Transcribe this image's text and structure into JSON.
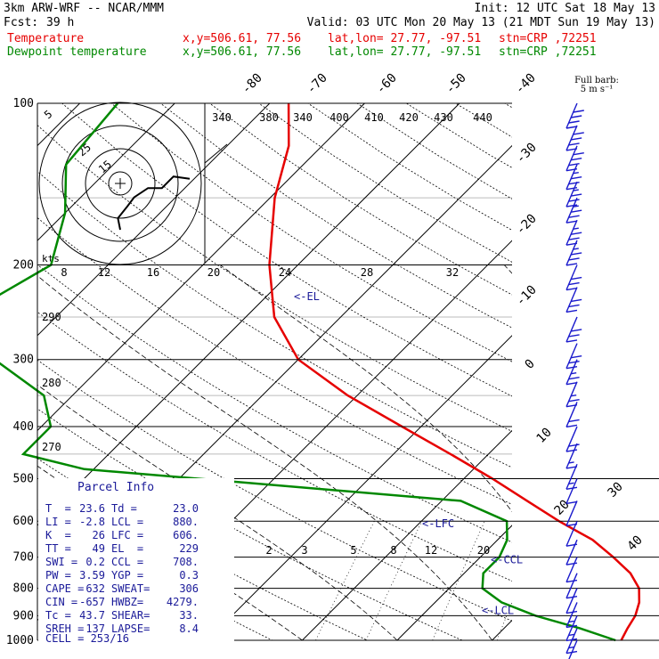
{
  "header": {
    "model": "3km ARW-WRF -- NCAR/MMM",
    "init": "Init: 12 UTC Sat 18 May 13",
    "fcst_label": "Fcst:",
    "fcst_value": "39 h",
    "valid": "Valid: 03 UTC Mon 20 May 13 (21 MDT Sun 19 May 13)",
    "temp_line": {
      "label": "Temperature",
      "xy": "x,y=506.61, 77.56",
      "latlon": "lat,lon= 27.77, -97.51",
      "stn": "stn=CRP ,72251"
    },
    "dew_line": {
      "label": "Dewpoint temperature",
      "xy": "x,y=506.61, 77.56",
      "latlon": "lat,lon= 27.77, -97.51",
      "stn": "stn=CRP ,72251"
    }
  },
  "colors": {
    "temperature": "#e60000",
    "dewpoint": "#008800",
    "wind": "#1a1acc",
    "grid": "#000000",
    "text": "#000000"
  },
  "barb_legend": {
    "line1": "Full barb:",
    "line2": "5 m s⁻¹"
  },
  "chart_data": {
    "type": "line",
    "subtype": "skew-T log-p sounding",
    "pressure_levels": [
      "100",
      "200",
      "300",
      "400",
      "500",
      "600",
      "700",
      "800",
      "900",
      "1000"
    ],
    "pressure_ticks": [
      100,
      200,
      300,
      400,
      500,
      600,
      700,
      800,
      900,
      1000
    ],
    "ylim": [
      100,
      1000
    ],
    "temperature_labels": [
      "-80",
      "-70",
      "-60",
      "-50",
      "-40",
      "-30",
      "-20",
      "-10",
      "0",
      "10",
      "20",
      "30",
      "40"
    ],
    "theta_labels": [
      "340",
      "380",
      "340",
      "400",
      "410",
      "420",
      "430",
      "440"
    ],
    "theta_e_labels": [
      "290",
      "280",
      "270"
    ],
    "mixing_ratio_labels": [
      "2",
      "3",
      "5",
      "8",
      "12",
      "20"
    ],
    "series": [
      {
        "name": "Temperature",
        "points": [
          [
            100,
            -68
          ],
          [
            120,
            -63.5
          ],
          [
            150,
            -59.5
          ],
          [
            200,
            -53
          ],
          [
            250,
            -47
          ],
          [
            300,
            -40
          ],
          [
            350,
            -31
          ],
          [
            400,
            -22
          ],
          [
            450,
            -14
          ],
          [
            500,
            -7
          ],
          [
            550,
            -1
          ],
          [
            600,
            4.5
          ],
          [
            650,
            10
          ],
          [
            700,
            14
          ],
          [
            750,
            17.5
          ],
          [
            800,
            20
          ],
          [
            850,
            21.5
          ],
          [
            900,
            22.5
          ],
          [
            950,
            23
          ],
          [
            1000,
            23.6
          ]
        ]
      },
      {
        "name": "Dewpoint temperature",
        "points": [
          [
            100,
            -86
          ],
          [
            130,
            -85
          ],
          [
            160,
            -80
          ],
          [
            200,
            -76
          ],
          [
            250,
            -80
          ],
          [
            300,
            -72
          ],
          [
            350,
            -63
          ],
          [
            400,
            -59
          ],
          [
            450,
            -59
          ],
          [
            480,
            -51
          ],
          [
            500,
            -38
          ],
          [
            550,
            -8
          ],
          [
            600,
            -1
          ],
          [
            650,
            1
          ],
          [
            700,
            2
          ],
          [
            750,
            2
          ],
          [
            800,
            3.5
          ],
          [
            850,
            7
          ],
          [
            900,
            12
          ],
          [
            950,
            18
          ],
          [
            1000,
            23
          ]
        ]
      }
    ],
    "annotations": [
      {
        "text": "<-EL",
        "pressure": 229
      },
      {
        "text": "<-LFC",
        "pressure": 606
      },
      {
        "text": "<-CCL",
        "pressure": 708
      },
      {
        "text": "<-LCL",
        "pressure": 880
      }
    ],
    "hodograph": {
      "speed_label": "kts",
      "ring_labels": [
        "5",
        "15",
        "25"
      ],
      "x_scale": [
        "8",
        "12",
        "16",
        "20",
        "24",
        "28",
        "32"
      ],
      "points": [
        [
          0,
          -20
        ],
        [
          -1,
          -15
        ],
        [
          3,
          -10
        ],
        [
          6,
          -6
        ],
        [
          12,
          -2
        ],
        [
          18,
          -2
        ],
        [
          23,
          3
        ],
        [
          30,
          2
        ]
      ]
    },
    "wind_barbs": [
      {
        "pressure": 100,
        "speed": 40
      },
      {
        "pressure": 110,
        "speed": 40
      },
      {
        "pressure": 120,
        "speed": 40
      },
      {
        "pressure": 130,
        "speed": 35
      },
      {
        "pressure": 140,
        "speed": 35
      },
      {
        "pressure": 150,
        "speed": 35
      },
      {
        "pressure": 165,
        "speed": 35
      },
      {
        "pressure": 180,
        "speed": 35
      },
      {
        "pressure": 200,
        "speed": 30
      },
      {
        "pressure": 220,
        "speed": 30
      },
      {
        "pressure": 250,
        "speed": 30
      },
      {
        "pressure": 280,
        "speed": 30
      },
      {
        "pressure": 300,
        "speed": 25
      },
      {
        "pressure": 330,
        "speed": 25
      },
      {
        "pressure": 360,
        "speed": 20
      },
      {
        "pressure": 400,
        "speed": 20
      },
      {
        "pressure": 430,
        "speed": 15
      },
      {
        "pressure": 470,
        "speed": 15
      },
      {
        "pressure": 500,
        "speed": 10
      },
      {
        "pressure": 550,
        "speed": 10
      },
      {
        "pressure": 600,
        "speed": 10
      },
      {
        "pressure": 650,
        "speed": 10
      },
      {
        "pressure": 700,
        "speed": 10
      },
      {
        "pressure": 750,
        "speed": 10
      },
      {
        "pressure": 800,
        "speed": 10
      },
      {
        "pressure": 850,
        "speed": 15
      },
      {
        "pressure": 900,
        "speed": 15
      },
      {
        "pressure": 950,
        "speed": 15
      },
      {
        "pressure": 1000,
        "speed": 10
      }
    ]
  },
  "parcel_info": {
    "title": "Parcel Info",
    "rows": [
      {
        "l1": "T  =",
        "v1": "23.6",
        "l2": "Td =",
        "v2": "23.0"
      },
      {
        "l1": "LI =",
        "v1": "-2.8",
        "l2": "LCL =",
        "v2": "880."
      },
      {
        "l1": "K  =",
        "v1": "26",
        "l2": "LFC =",
        "v2": "606."
      },
      {
        "l1": "TT =",
        "v1": "49",
        "l2": "EL  =",
        "v2": "229"
      },
      {
        "l1": "SWI =",
        "v1": "0.2",
        "l2": "CCL =",
        "v2": "708."
      },
      {
        "l1": "PW =",
        "v1": "3.59",
        "l2": "YGP =",
        "v2": "0.3"
      },
      {
        "l1": "CAPE =",
        "v1": "632",
        "l2": "SWEAT=",
        "v2": "306"
      },
      {
        "l1": "CIN =",
        "v1": "-657",
        "l2": "HWBZ=",
        "v2": "4279."
      },
      {
        "l1": "Tc =",
        "v1": "43.7",
        "l2": "SHEAR=",
        "v2": "33."
      },
      {
        "l1": "SREH =",
        "v1": "137",
        "l2": "LAPSE=",
        "v2": "8.4"
      }
    ],
    "cell": "CELL = 253/16"
  }
}
